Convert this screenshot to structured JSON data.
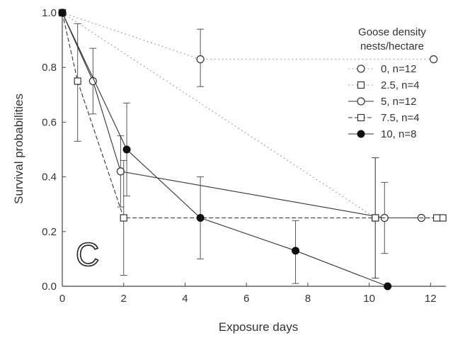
{
  "chart_data": {
    "type": "line",
    "panel_label": "C",
    "xlabel": "Exposure days",
    "ylabel": "Survival probabilities",
    "xlim": [
      0,
      12.5
    ],
    "ylim": [
      0,
      1.0
    ],
    "xticks": [
      "0",
      "2",
      "4",
      "6",
      "8",
      "10",
      "12"
    ],
    "xtick_values": [
      0,
      2,
      4,
      6,
      8,
      10,
      12
    ],
    "yticks": [
      "0.0",
      "0.2",
      "0.4",
      "0.6",
      "0.8",
      "1.0"
    ],
    "ytick_values": [
      0,
      0.2,
      0.4,
      0.6,
      0.8,
      1.0
    ],
    "grid": false,
    "legend_title": [
      "Goose density",
      "nests/hectare"
    ],
    "legend_position": "top-right",
    "series": [
      {
        "name": "0, n=12",
        "marker": "circle-open",
        "line": "dotted",
        "x": [
          0,
          4.5,
          12.1
        ],
        "y": [
          1.0,
          0.83,
          0.83
        ],
        "err": [
          [
            0,
            0
          ],
          [
            0.73,
            0.94
          ],
          [
            0,
            0
          ]
        ]
      },
      {
        "name": "2.5, n=4",
        "marker": "square-open",
        "line": "dotted",
        "x": [
          0,
          10.2,
          12.4
        ],
        "y": [
          1.0,
          0.25,
          0.25
        ],
        "err": [
          [
            0,
            0
          ],
          [
            0.03,
            0.47
          ],
          [
            0,
            0
          ]
        ]
      },
      {
        "name": "5, n=12",
        "marker": "circle-open",
        "line": "solid",
        "x": [
          0,
          1.0,
          1.9,
          10.5,
          11.7
        ],
        "y": [
          1.0,
          0.75,
          0.42,
          0.25,
          0.25
        ],
        "err": [
          [
            0,
            0
          ],
          [
            0.63,
            0.87
          ],
          [
            0.29,
            0.55
          ],
          [
            0.12,
            0.38
          ],
          [
            0,
            0
          ]
        ]
      },
      {
        "name": "7.5, n=4",
        "marker": "square-open",
        "line": "dashed",
        "x": [
          0,
          0.5,
          2.0,
          10.2,
          12.2
        ],
        "y": [
          1.0,
          0.75,
          0.25,
          0.25,
          0.25
        ],
        "err": [
          [
            0,
            0
          ],
          [
            0.53,
            0.96
          ],
          [
            0.04,
            0.46
          ],
          [
            0.03,
            0.47
          ],
          [
            0,
            0
          ]
        ]
      },
      {
        "name": "10, n=8",
        "marker": "circle-filled",
        "line": "solid",
        "x": [
          0,
          2.1,
          4.5,
          7.6,
          10.6
        ],
        "y": [
          1.0,
          0.5,
          0.25,
          0.13,
          0.0
        ],
        "err": [
          [
            0,
            0
          ],
          [
            0.33,
            0.67
          ],
          [
            0.1,
            0.4
          ],
          [
            0.01,
            0.24
          ],
          [
            0,
            0
          ]
        ]
      }
    ]
  }
}
